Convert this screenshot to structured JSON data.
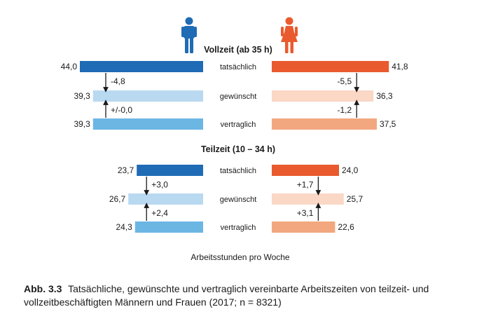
{
  "chart_data": {
    "type": "bar",
    "panels": [
      {
        "title": "Vollzeit (ab 35 h)",
        "categories": [
          "tatsächlich",
          "gewünscht",
          "vertraglich"
        ],
        "series": [
          {
            "group": "Männer",
            "values": [
              44.0,
              39.3,
              39.3
            ],
            "labels": [
              "44,0",
              "39,3",
              "39,3"
            ]
          },
          {
            "group": "Frauen",
            "values": [
              41.8,
              36.3,
              37.5
            ],
            "labels": [
              "41,8",
              "36,3",
              "37,5"
            ]
          }
        ],
        "differences": {
          "Männer": [
            "-4,8",
            "+/-0,0"
          ],
          "Frauen": [
            "-5,5",
            "-1,2"
          ]
        }
      },
      {
        "title": "Teilzeit (10 – 34 h)",
        "categories": [
          "tatsächlich",
          "gewünscht",
          "vertraglich"
        ],
        "series": [
          {
            "group": "Männer",
            "values": [
              23.7,
              26.7,
              24.3
            ],
            "labels": [
              "23,7",
              "26,7",
              "24,3"
            ]
          },
          {
            "group": "Frauen",
            "values": [
              24.0,
              25.7,
              22.6
            ],
            "labels": [
              "24,0",
              "25,7",
              "22,6"
            ]
          }
        ],
        "differences": {
          "Männer": [
            "+3,0",
            "+2,4"
          ],
          "Frauen": [
            "+1,7",
            "+3,1"
          ]
        }
      }
    ],
    "xlabel": "Arbeitsstunden pro Woche",
    "colors": {
      "men": [
        "#1f6bb5",
        "#b9d9f1",
        "#6cb6e4"
      ],
      "women": [
        "#e95a2e",
        "#fbd7c6",
        "#f2a77f"
      ]
    },
    "icons": {
      "men": "man-icon",
      "women": "woman-icon"
    }
  },
  "caption": {
    "number": "Abb. 3.3",
    "text": "Tatsächliche, gewünschte und vertraglich vereinbarte Arbeitszeiten von teilzeit- und vollzeitbeschäftigten Männern und Frauen (2017; n = 8321)"
  }
}
